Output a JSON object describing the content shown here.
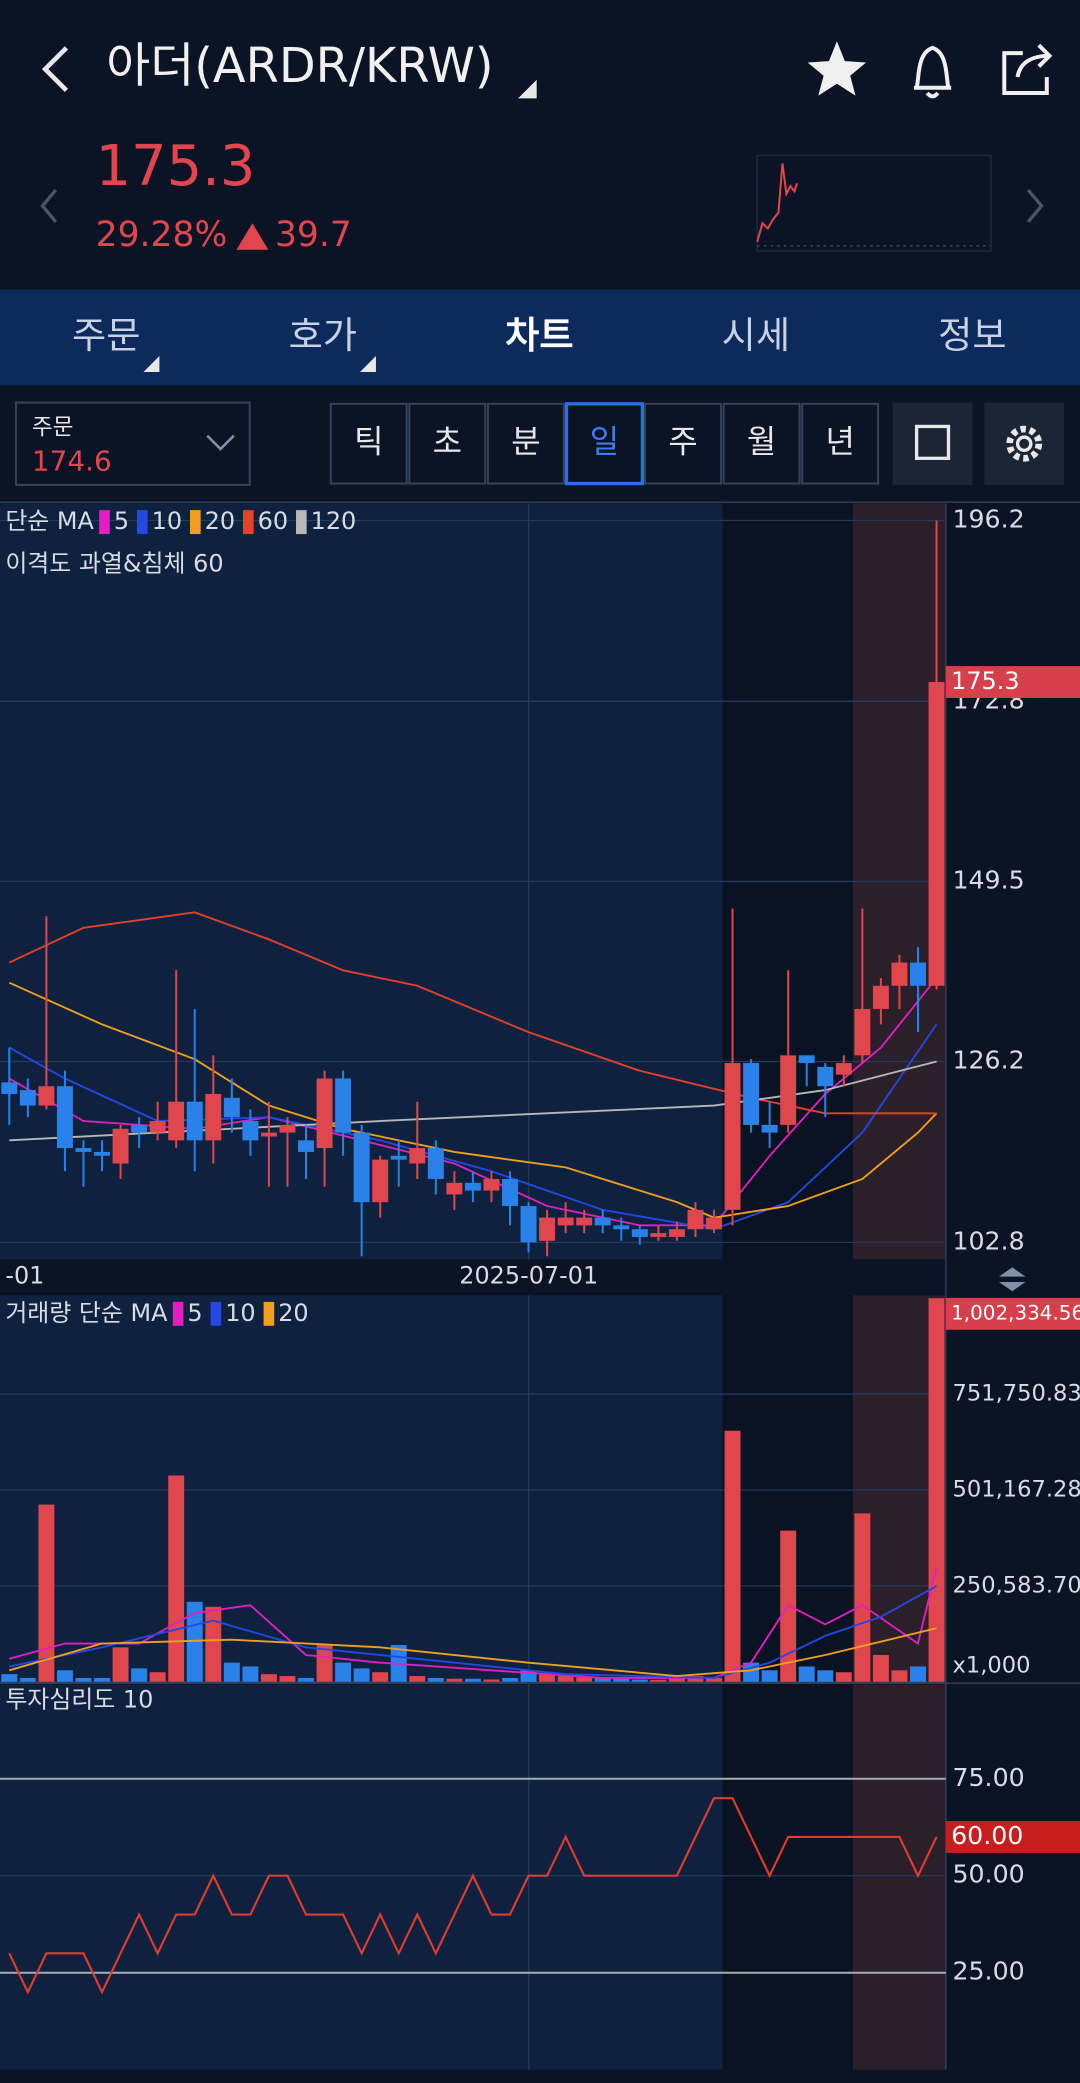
{
  "header": {
    "title": "아더(ARDR/KRW)",
    "price": "175.3",
    "change_pct": "29.28%",
    "change": "39.7"
  },
  "tabs": [
    "주문",
    "호가",
    "차트",
    "시세",
    "정보"
  ],
  "order": {
    "label": "주문",
    "price": "174.6"
  },
  "periods": [
    "틱",
    "초",
    "분",
    "일",
    "주",
    "월",
    "년"
  ],
  "chart_data": [
    {
      "type": "candlestick",
      "legend_label": "단순 MA",
      "indicator_label": "이격도 과열&침체 60",
      "date_labels": [
        "-01",
        "2025-07-01"
      ],
      "open": [
        123.5,
        122.5,
        120.5,
        123,
        115,
        114.5,
        113,
        118,
        117,
        116,
        121,
        116,
        121.5,
        118.5,
        116.5,
        117,
        116,
        115,
        124,
        117,
        108,
        114,
        113,
        115,
        109,
        110.5,
        109.5,
        111,
        107.5,
        103,
        105,
        105,
        106,
        105,
        104.5,
        103.5,
        103.5,
        104.5,
        104.5,
        107,
        126,
        118,
        118,
        127,
        125.5,
        124.5,
        127,
        133,
        136,
        139,
        136
      ],
      "high": [
        128,
        124,
        145,
        125,
        116,
        116,
        118,
        119,
        121,
        138,
        133,
        127,
        124,
        120,
        121,
        119,
        118,
        125,
        125,
        118,
        114,
        116,
        121,
        116,
        112,
        112,
        112,
        112,
        108,
        107,
        108,
        107,
        107,
        106,
        105,
        105,
        105.5,
        108,
        107,
        146,
        126.5,
        121,
        138,
        127,
        126,
        127,
        146,
        137,
        140,
        141,
        196.2
      ],
      "low": [
        118,
        119,
        120,
        112,
        110,
        112,
        111,
        115,
        116,
        115,
        112,
        113,
        117,
        114,
        110,
        110,
        111,
        110,
        114,
        101,
        106,
        110,
        111,
        109,
        107,
        108,
        108,
        105,
        101.5,
        101,
        104,
        104,
        104,
        103,
        102.5,
        103,
        103,
        103.5,
        104,
        105,
        117,
        115,
        117,
        123,
        119,
        123,
        126,
        131,
        133,
        130,
        135.5
      ],
      "close": [
        122,
        120.5,
        123,
        115,
        114.5,
        114,
        117.5,
        117,
        118.5,
        121,
        116,
        122,
        119,
        116,
        117,
        118,
        114.5,
        124,
        117,
        108,
        113.5,
        113.5,
        115,
        111,
        110.5,
        109.5,
        111,
        107.5,
        102.8,
        106,
        106,
        106,
        105,
        104.5,
        103.5,
        104,
        104.5,
        107,
        106,
        126,
        118,
        117,
        127,
        126,
        123,
        126,
        133,
        136,
        139,
        136,
        175.3
      ],
      "ylim": [
        100.6,
        198.4
      ],
      "yticks": [
        196.2,
        172.8,
        149.5,
        126.2,
        102.8
      ],
      "current_price": 175.3,
      "series": [
        {
          "name": "5",
          "color": "#e020c0",
          "x": [
            0,
            4,
            10,
            14,
            19,
            24,
            29,
            34,
            38,
            41,
            44,
            47,
            49,
            50
          ],
          "values": [
            124,
            118.5,
            117.5,
            119,
            116,
            113,
            107.5,
            105,
            105,
            114,
            122,
            128,
            134,
            137
          ]
        },
        {
          "name": "10",
          "color": "#2448e0",
          "x": [
            0,
            3,
            8,
            14,
            20,
            26,
            32,
            38,
            42,
            46,
            50
          ],
          "values": [
            128,
            124,
            118.5,
            119,
            116,
            112,
            107,
            104.5,
            108,
            117,
            131
          ]
        },
        {
          "name": "20",
          "color": "#f0a020",
          "x": [
            0,
            5,
            10,
            14,
            18,
            24,
            30,
            36,
            38,
            42,
            46,
            49,
            50
          ],
          "values": [
            136.4,
            131,
            126.5,
            120.5,
            117.5,
            114.5,
            112.5,
            108,
            106,
            107.5,
            111,
            117,
            119.5
          ]
        },
        {
          "name": "60",
          "color": "#e8402a",
          "x": [
            0,
            4,
            10,
            14,
            18,
            22,
            28,
            34,
            40,
            44,
            50
          ],
          "values": [
            139,
            143.5,
            145.5,
            142,
            138,
            136,
            130,
            125,
            121.5,
            119.5,
            119.5
          ]
        },
        {
          "name": "120",
          "color": "#b8b8b8",
          "x": [
            0,
            20,
            38,
            44,
            50
          ],
          "values": [
            116,
            118.5,
            120.5,
            122.5,
            126.2
          ]
        }
      ]
    },
    {
      "type": "bar",
      "legend_label": "거래량 단순 MA",
      "values": [
        20000,
        10000,
        463000,
        30000,
        10000,
        10000,
        90000,
        35000,
        25000,
        539000,
        209000,
        196000,
        50000,
        40000,
        20000,
        15000,
        10000,
        96000,
        50000,
        35000,
        25000,
        96000,
        15000,
        10000,
        8000,
        8000,
        6000,
        10000,
        30000,
        20000,
        15000,
        12000,
        10000,
        8000,
        6000,
        5000,
        8000,
        15000,
        10000,
        656000,
        50000,
        30000,
        395000,
        40000,
        30000,
        25000,
        440000,
        70000,
        30000,
        40000,
        1002334.561
      ],
      "ylim": [
        0,
        1010000
      ],
      "yticks": [
        {
          "value": 751750.831,
          "label": "751,750.831"
        },
        {
          "value": 501167.281,
          "label": "501,167.281"
        },
        {
          "value": 250583.7,
          "label": "250,583.700"
        },
        {
          "value": 0,
          "label": "x1,000"
        }
      ],
      "current": {
        "value": 1002334.561,
        "label": "1,002,334.561"
      },
      "series": [
        {
          "name": "5",
          "color": "#e020c0",
          "x": [
            0,
            3,
            7,
            10,
            13,
            16,
            20,
            26,
            32,
            38,
            40,
            42,
            44,
            46,
            49,
            50
          ],
          "values": [
            60000,
            100000,
            100000,
            180000,
            200000,
            70000,
            50000,
            30000,
            10000,
            10000,
            50000,
            200000,
            150000,
            200000,
            100000,
            300000
          ]
        },
        {
          "name": "10",
          "color": "#2448e0",
          "x": [
            0,
            5,
            11,
            16,
            22,
            30,
            38,
            41,
            44,
            47,
            50
          ],
          "values": [
            40000,
            90000,
            160000,
            90000,
            60000,
            20000,
            10000,
            50000,
            120000,
            170000,
            250000
          ]
        },
        {
          "name": "20",
          "color": "#f0a020",
          "x": [
            0,
            5,
            12,
            20,
            28,
            36,
            40,
            44,
            50
          ],
          "values": [
            30000,
            100000,
            110000,
            90000,
            50000,
            15000,
            30000,
            70000,
            140000
          ]
        }
      ]
    },
    {
      "type": "line",
      "title": "투자심리도 10",
      "color": "#e03c30",
      "values": [
        30,
        20,
        30,
        30,
        30,
        20,
        30,
        40,
        30,
        40,
        40,
        50,
        40,
        40,
        50,
        50,
        40,
        40,
        40,
        30,
        40,
        30,
        40,
        30,
        40,
        50,
        40,
        40,
        50,
        50,
        60,
        50,
        50,
        50,
        50,
        50,
        50,
        60,
        70,
        70,
        60,
        50,
        60,
        60,
        60,
        60,
        60,
        60,
        60,
        50,
        60
      ],
      "ylim": [
        0,
        100
      ],
      "yticks": [
        {
          "value": 75,
          "label": "75.00"
        },
        {
          "value": 50,
          "label": "50.00"
        },
        {
          "value": 25,
          "label": "25.00"
        }
      ],
      "current": {
        "value": 60,
        "label": "60.00"
      }
    }
  ]
}
